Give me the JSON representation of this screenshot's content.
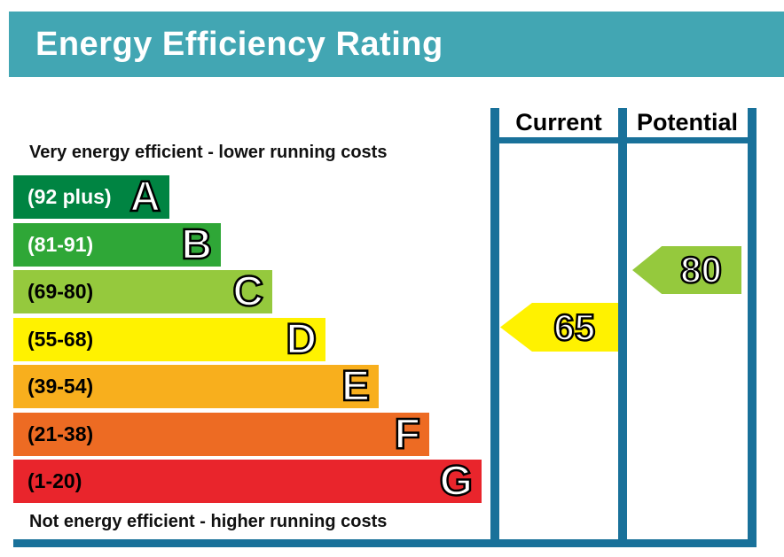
{
  "title": "Energy Efficiency Rating",
  "scale_top_label": "Very energy efficient - lower running costs",
  "scale_bottom_label": "Not energy efficient - higher running costs",
  "table": {
    "current_header": "Current",
    "potential_header": "Potential"
  },
  "bands": [
    {
      "letter": "A",
      "range": "(92 plus)",
      "color": "#008442",
      "label_color": "#ffffff"
    },
    {
      "letter": "B",
      "range": "(81-91)",
      "color": "#2FA737",
      "label_color": "#ffffff"
    },
    {
      "letter": "C",
      "range": "(69-80)",
      "color": "#95C93D",
      "label_color": "#000000"
    },
    {
      "letter": "D",
      "range": "(55-68)",
      "color": "#FFF200",
      "label_color": "#000000"
    },
    {
      "letter": "E",
      "range": "(39-54)",
      "color": "#F8AF1D",
      "label_color": "#000000"
    },
    {
      "letter": "F",
      "range": "(21-38)",
      "color": "#ED6B23",
      "label_color": "#000000"
    },
    {
      "letter": "G",
      "range": "(1-20)",
      "color": "#E9252C",
      "label_color": "#000000"
    }
  ],
  "ratings": {
    "current": {
      "value": "65",
      "color": "#FFF200",
      "band": "D"
    },
    "potential": {
      "value": "80",
      "color": "#95C93D",
      "band": "C"
    }
  },
  "colors": {
    "title_bar_bg": "#42A6B3",
    "title_text": "#FFFFFF",
    "table_border": "#19719A"
  },
  "chart_data": {
    "type": "bar",
    "title": "Energy Efficiency Rating",
    "orientation": "horizontal",
    "scale_range": [
      1,
      100
    ],
    "categories": [
      "A",
      "B",
      "C",
      "D",
      "E",
      "F",
      "G"
    ],
    "band_ranges": [
      "92 plus",
      "81-91",
      "69-80",
      "55-68",
      "39-54",
      "21-38",
      "1-20"
    ],
    "band_colors": [
      "#008442",
      "#2FA737",
      "#95C93D",
      "#FFF200",
      "#F8AF1D",
      "#ED6B23",
      "#E9252C"
    ],
    "series": [
      {
        "name": "Current",
        "value": 65,
        "band": "D",
        "marker_color": "#FFF200"
      },
      {
        "name": "Potential",
        "value": 80,
        "band": "C",
        "marker_color": "#95C93D"
      }
    ],
    "top_annotation": "Very energy efficient - lower running costs",
    "bottom_annotation": "Not energy efficient - higher running costs",
    "legend_position": "none",
    "grid": false
  }
}
